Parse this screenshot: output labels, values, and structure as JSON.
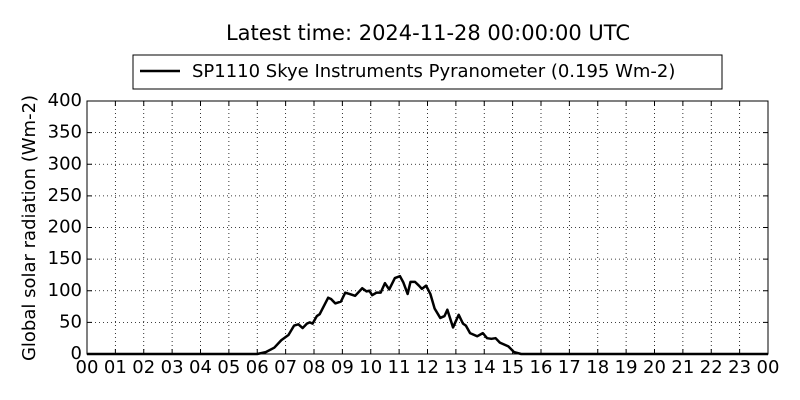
{
  "chart_data": {
    "type": "line",
    "title": "Latest time: 2024-11-28 00:00:00 UTC",
    "ylabel": "Global solar radiation (Wm-2)",
    "series": [
      {
        "name": "SP1110 Skye Instruments Pyranometer (0.195 Wm-2)",
        "color": "#000000",
        "x": [
          0,
          6.0,
          6.3,
          6.6,
          6.85,
          7.1,
          7.3,
          7.45,
          7.6,
          7.75,
          7.85,
          7.95,
          8.1,
          8.2,
          8.35,
          8.5,
          8.6,
          8.75,
          8.95,
          9.1,
          9.25,
          9.45,
          9.7,
          9.85,
          9.95,
          10.05,
          10.2,
          10.35,
          10.5,
          10.65,
          10.85,
          11.03,
          11.15,
          11.3,
          11.4,
          11.56,
          11.7,
          11.8,
          11.95,
          12.1,
          12.25,
          12.45,
          12.6,
          12.7,
          12.9,
          13.1,
          13.25,
          13.35,
          13.5,
          13.75,
          13.95,
          14.1,
          14.25,
          14.4,
          14.55,
          14.85,
          15.05,
          15.3,
          24
        ],
        "values": [
          0,
          0,
          3,
          10,
          22,
          30,
          45,
          47,
          41,
          48,
          50,
          48,
          60,
          63,
          76,
          89,
          87,
          80,
          83,
          97,
          95,
          92,
          104,
          99,
          100,
          93,
          97,
          97,
          112,
          102,
          120,
          123,
          113,
          95,
          114,
          114,
          108,
          103,
          108,
          95,
          72,
          57,
          60,
          70,
          42,
          62,
          48,
          45,
          33,
          28,
          33,
          25,
          24,
          25,
          18,
          12,
          3,
          0,
          0
        ]
      }
    ],
    "xlim": [
      0,
      24
    ],
    "xticks": [
      {
        "value": 0,
        "label": "00"
      },
      {
        "value": 1,
        "label": "01"
      },
      {
        "value": 2,
        "label": "02"
      },
      {
        "value": 3,
        "label": "03"
      },
      {
        "value": 4,
        "label": "04"
      },
      {
        "value": 5,
        "label": "05"
      },
      {
        "value": 6,
        "label": "06"
      },
      {
        "value": 7,
        "label": "07"
      },
      {
        "value": 8,
        "label": "08"
      },
      {
        "value": 9,
        "label": "09"
      },
      10,
      11,
      12,
      13,
      14,
      15,
      16,
      17,
      18,
      19,
      20,
      21,
      22,
      23,
      {
        "value": 24,
        "label": "00"
      }
    ],
    "ylim": [
      0,
      400
    ],
    "yticks": [
      0,
      50,
      100,
      150,
      200,
      250,
      300,
      350,
      400
    ],
    "grid": true,
    "legend": "top"
  }
}
